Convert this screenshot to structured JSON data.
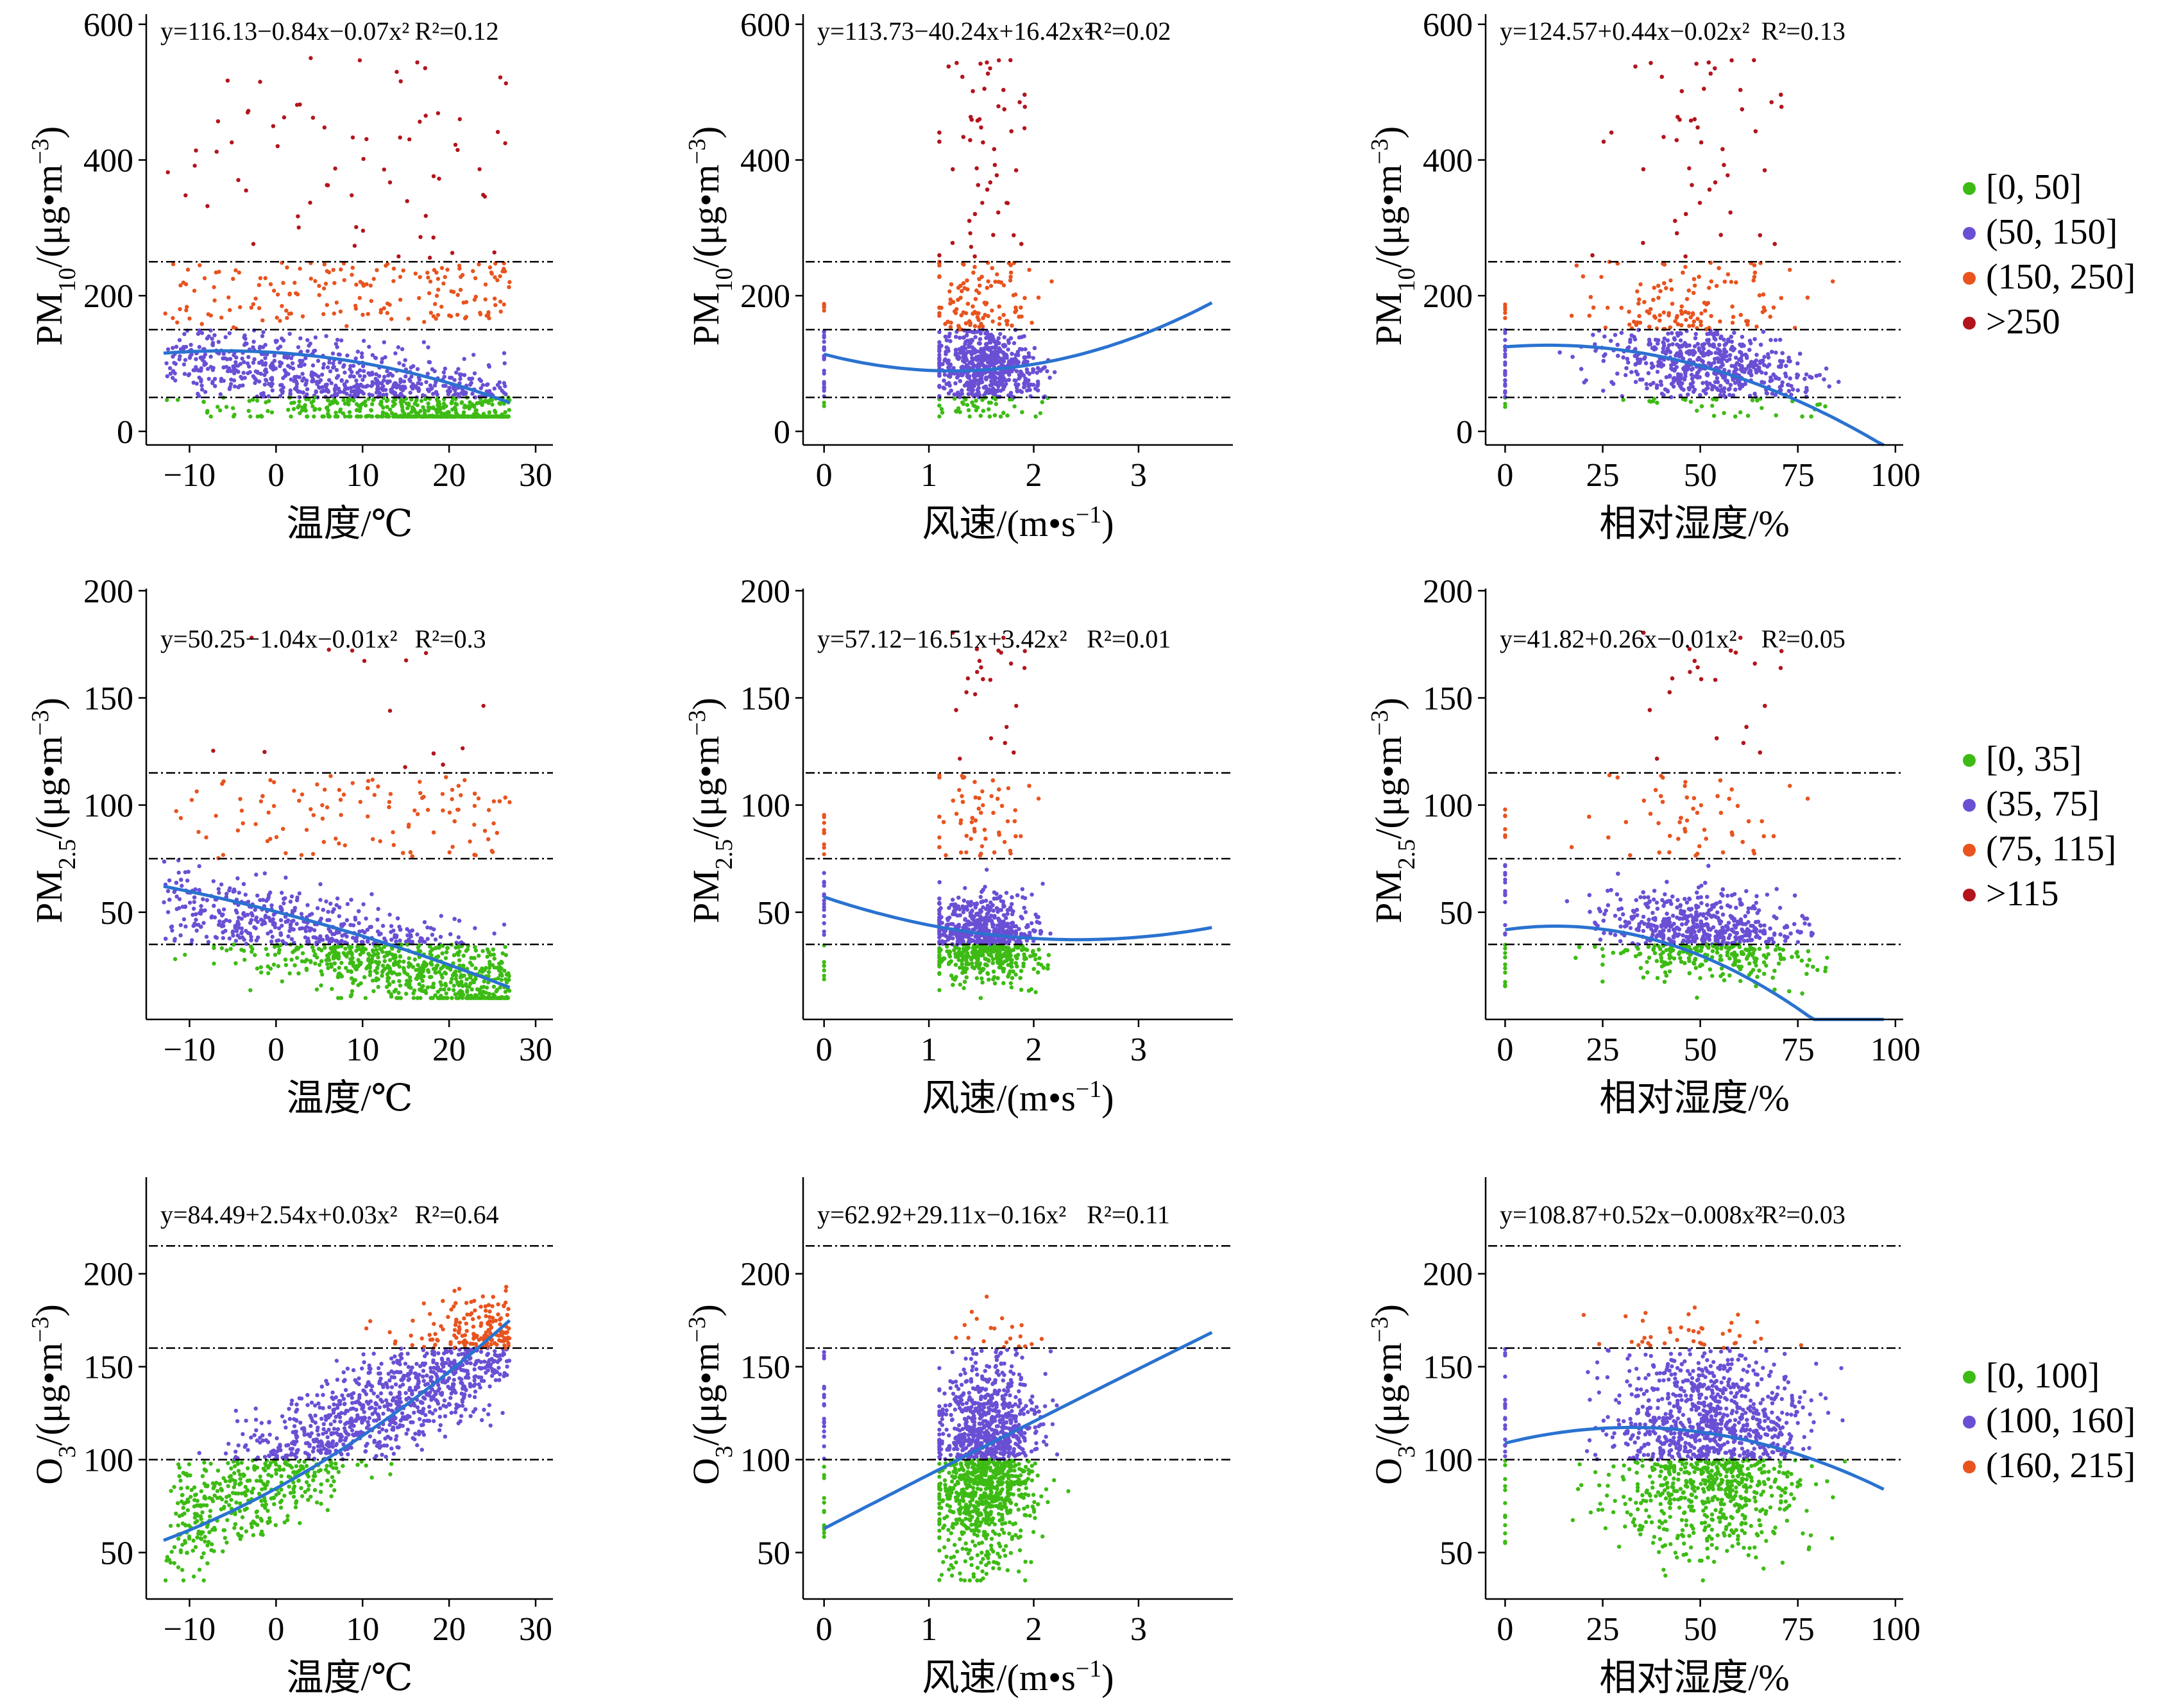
{
  "colors": {
    "green": "#3dbb14",
    "purple": "#6a4fd4",
    "orange": "#e8531e",
    "darkred": "#b3141c",
    "fit": "#2a72d0",
    "axis": "#000000"
  },
  "chart_data": [
    {
      "id": "pm10-temp",
      "type": "scatter",
      "pollutant": "pm10",
      "predictor": "temp",
      "title": "",
      "xlabel": "温度/℃",
      "ylabel": "PM10/(μg•m−3)",
      "ylabel_parts": {
        "main": "PM",
        "sub": "10",
        "tail": "/(μg•m",
        "sup": "−3",
        ")": ")"
      },
      "xlim": [
        -15,
        32
      ],
      "ylim": [
        -20,
        615
      ],
      "xticks": [
        -10,
        0,
        10,
        20,
        30
      ],
      "yticks": [
        0,
        200,
        400,
        600
      ],
      "equation": {
        "text": "y=116.13−0.84x−0.07x²",
        "r2": "R²=0.12"
      },
      "fit": {
        "a": 116.13,
        "b": -0.84,
        "c": -0.07,
        "range": [
          -13,
          27
        ]
      },
      "thresholds": [
        50,
        150,
        250
      ],
      "xrange": [
        -13,
        27
      ],
      "shape": "temp-pm10"
    },
    {
      "id": "pm10-wind",
      "type": "scatter",
      "pollutant": "pm10",
      "predictor": "wind",
      "title": "",
      "xlabel": "风速/(m•s−1)",
      "ylabel": "PM10/(μg•m−3)",
      "xlim": [
        -0.2,
        3.9
      ],
      "ylim": [
        -20,
        615
      ],
      "xticks": [
        0,
        1,
        2,
        3
      ],
      "yticks": [
        0,
        200,
        400,
        600
      ],
      "equation": {
        "text": "y=113.73−40.24x+16.42x²",
        "r2": "R²=0.02"
      },
      "fit": {
        "a": 113.73,
        "b": -40.24,
        "c": 16.42,
        "range": [
          0,
          3.7
        ]
      },
      "thresholds": [
        50,
        150,
        250
      ],
      "xrange": [
        1.1,
        3.6
      ],
      "shape": "wind-pm10"
    },
    {
      "id": "pm10-rh",
      "type": "scatter",
      "pollutant": "pm10",
      "predictor": "rh",
      "title": "",
      "xlabel": "相对湿度/%",
      "ylabel": "PM10/(μg•m−3)",
      "xlim": [
        -5,
        102
      ],
      "ylim": [
        -20,
        615
      ],
      "xticks": [
        0,
        25,
        50,
        75,
        100
      ],
      "yticks": [
        0,
        200,
        400,
        600
      ],
      "equation": {
        "text": "y=124.57+0.44x−0.02x²",
        "r2": "R²=0.13"
      },
      "fit": {
        "a": 124.57,
        "b": 0.44,
        "c": -0.02,
        "range": [
          0,
          97
        ]
      },
      "thresholds": [
        50,
        150,
        250
      ],
      "xrange": [
        14,
        96
      ],
      "shape": "rh-pm10"
    },
    {
      "id": "pm25-temp",
      "type": "scatter",
      "pollutant": "pm25",
      "predictor": "temp",
      "title": "",
      "xlabel": "温度/℃",
      "ylabel": "PM2.5/(μg•m−3)",
      "xlim": [
        -15,
        32
      ],
      "ylim": [
        0,
        201
      ],
      "xticks": [
        -10,
        0,
        10,
        20,
        30
      ],
      "yticks": [
        50,
        100,
        150,
        200
      ],
      "equation": {
        "text": "y=50.25−1.04x−0.01x²",
        "r2": "R²=0.3"
      },
      "fit": {
        "a": 50.25,
        "b": -1.04,
        "c": -0.01,
        "range": [
          -13,
          27
        ]
      },
      "thresholds": [
        35,
        75,
        115
      ],
      "xrange": [
        -13,
        27
      ],
      "shape": "temp-pm25"
    },
    {
      "id": "pm25-wind",
      "type": "scatter",
      "pollutant": "pm25",
      "predictor": "wind",
      "title": "",
      "xlabel": "风速/(m•s−1)",
      "ylabel": "PM2.5/(μg•m−3)",
      "xlim": [
        -0.2,
        3.9
      ],
      "ylim": [
        0,
        201
      ],
      "xticks": [
        0,
        1,
        2,
        3
      ],
      "yticks": [
        50,
        100,
        150,
        200
      ],
      "equation": {
        "text": "y=57.12−16.51x+3.42x²",
        "r2": "R²=0.01"
      },
      "fit": {
        "a": 57.12,
        "b": -16.51,
        "c": 3.42,
        "range": [
          0,
          3.7
        ]
      },
      "thresholds": [
        35,
        75,
        115
      ],
      "xrange": [
        1.1,
        3.6
      ],
      "shape": "wind-pm25"
    },
    {
      "id": "pm25-rh",
      "type": "scatter",
      "pollutant": "pm25",
      "predictor": "rh",
      "title": "",
      "xlabel": "相对湿度/%",
      "ylabel": "PM2.5/(μg•m−3)",
      "xlim": [
        -5,
        102
      ],
      "ylim": [
        0,
        201
      ],
      "xticks": [
        0,
        25,
        50,
        75,
        100
      ],
      "yticks": [
        50,
        100,
        150,
        200
      ],
      "equation": {
        "text": "y=41.82+0.26x−0.01x²",
        "r2": "R²=0.05"
      },
      "fit": {
        "a": 41.82,
        "b": 0.26,
        "c": -0.01,
        "range": [
          0,
          97
        ]
      },
      "thresholds": [
        35,
        75,
        115
      ],
      "xrange": [
        14,
        96
      ],
      "shape": "rh-pm25"
    },
    {
      "id": "o3-temp",
      "type": "scatter",
      "pollutant": "o3",
      "predictor": "temp",
      "title": "",
      "xlabel": "温度/℃",
      "ylabel": "O3/(μg•m−3)",
      "xlim": [
        -15,
        32
      ],
      "ylim": [
        25,
        252
      ],
      "xticks": [
        -10,
        0,
        10,
        20,
        30
      ],
      "yticks": [
        50,
        100,
        150,
        200
      ],
      "equation": {
        "text": "y=84.49+2.54x+0.03x²",
        "r2": "R²=0.64"
      },
      "fit": {
        "a": 84.49,
        "b": 2.54,
        "c": 0.03,
        "range": [
          -13,
          27
        ]
      },
      "thresholds": [
        100,
        160,
        215
      ],
      "xrange": [
        -13,
        27
      ],
      "shape": "temp-o3"
    },
    {
      "id": "o3-wind",
      "type": "scatter",
      "pollutant": "o3",
      "predictor": "wind",
      "title": "",
      "xlabel": "风速/(m•s−1)",
      "ylabel": "O3/(μg•m−3)",
      "xlim": [
        -0.2,
        3.9
      ],
      "ylim": [
        25,
        252
      ],
      "xticks": [
        0,
        1,
        2,
        3
      ],
      "yticks": [
        50,
        100,
        150,
        200
      ],
      "equation": {
        "text": "y=62.92+29.11x−0.16x²",
        "r2": "R²=0.11"
      },
      "fit": {
        "a": 62.92,
        "b": 29.11,
        "c": -0.16,
        "range": [
          0,
          3.7
        ]
      },
      "thresholds": [
        100,
        160,
        215
      ],
      "xrange": [
        1.1,
        3.6
      ],
      "shape": "wind-o3"
    },
    {
      "id": "o3-rh",
      "type": "scatter",
      "pollutant": "o3",
      "predictor": "rh",
      "title": "",
      "xlabel": "相对湿度/%",
      "ylabel": "O3/(μg•m−3)",
      "xlim": [
        -5,
        102
      ],
      "ylim": [
        25,
        252
      ],
      "xticks": [
        0,
        25,
        50,
        75,
        100
      ],
      "yticks": [
        50,
        100,
        150,
        200
      ],
      "equation": {
        "text": "y=108.87+0.52x−0.008x²",
        "r2": "R²=0.03"
      },
      "fit": {
        "a": 108.87,
        "b": 0.52,
        "c": -0.008,
        "range": [
          0,
          97
        ]
      },
      "thresholds": [
        100,
        160,
        215
      ],
      "xrange": [
        14,
        96
      ],
      "shape": "rh-o3"
    }
  ],
  "legends": {
    "pm10": [
      {
        "label": "[0, 50]",
        "color": "#3dbb14"
      },
      {
        "label": "(50, 150]",
        "color": "#6a4fd4"
      },
      {
        "label": "(150, 250]",
        "color": "#e8531e"
      },
      {
        "label": ">250",
        "color": "#b3141c"
      }
    ],
    "pm25": [
      {
        "label": "[0, 35]",
        "color": "#3dbb14"
      },
      {
        "label": "(35, 75]",
        "color": "#6a4fd4"
      },
      {
        "label": "(75, 115]",
        "color": "#e8531e"
      },
      {
        "label": ">115",
        "color": "#b3141c"
      }
    ],
    "o3": [
      {
        "label": "[0, 100]",
        "color": "#3dbb14"
      },
      {
        "label": "(100, 160]",
        "color": "#6a4fd4"
      },
      {
        "label": "(160, 215]",
        "color": "#e8531e"
      }
    ]
  }
}
